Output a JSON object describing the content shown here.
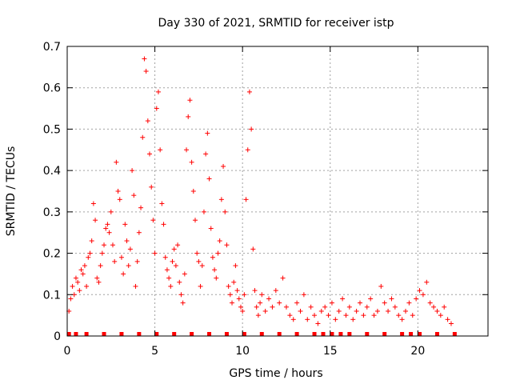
{
  "chart_data": {
    "type": "scatter",
    "title": "Day 330 of 2021, SRMTID for receiver istp",
    "xlabel": "GPS time / hours",
    "ylabel": "SRMTID / TECUs",
    "xlim": [
      0,
      24
    ],
    "ylim": [
      0,
      0.7
    ],
    "xticks": [
      0,
      5,
      10,
      15,
      20
    ],
    "yticks": [
      0,
      0.1,
      0.2,
      0.3,
      0.4,
      0.5,
      0.6,
      0.7
    ],
    "xtick_labels": [
      "0",
      "5",
      "10",
      "15",
      "20"
    ],
    "ytick_labels": [
      "0",
      "0.1",
      "0.2",
      "0.3",
      "0.4",
      "0.5",
      "0.6",
      "0.7"
    ],
    "grid": true,
    "marker": "+",
    "color": "#ff0000",
    "series": [
      {
        "name": "SRMTID",
        "points": [
          [
            0.1,
            0.06
          ],
          [
            0.2,
            0.09
          ],
          [
            0.3,
            0.12
          ],
          [
            0.4,
            0.1
          ],
          [
            0.5,
            0.14
          ],
          [
            0.6,
            0.13
          ],
          [
            0.7,
            0.11
          ],
          [
            0.8,
            0.16
          ],
          [
            0.9,
            0.15
          ],
          [
            1.0,
            0.17
          ],
          [
            1.1,
            0.12
          ],
          [
            1.2,
            0.19
          ],
          [
            1.3,
            0.2
          ],
          [
            1.4,
            0.23
          ],
          [
            1.5,
            0.32
          ],
          [
            1.6,
            0.28
          ],
          [
            1.7,
            0.14
          ],
          [
            1.8,
            0.13
          ],
          [
            1.9,
            0.17
          ],
          [
            2.0,
            0.2
          ],
          [
            2.1,
            0.22
          ],
          [
            2.2,
            0.26
          ],
          [
            2.3,
            0.27
          ],
          [
            2.4,
            0.25
          ],
          [
            2.5,
            0.3
          ],
          [
            2.6,
            0.22
          ],
          [
            2.7,
            0.18
          ],
          [
            2.8,
            0.42
          ],
          [
            2.9,
            0.35
          ],
          [
            3.0,
            0.33
          ],
          [
            3.1,
            0.19
          ],
          [
            3.2,
            0.15
          ],
          [
            3.3,
            0.27
          ],
          [
            3.4,
            0.23
          ],
          [
            3.5,
            0.17
          ],
          [
            3.6,
            0.21
          ],
          [
            3.7,
            0.4
          ],
          [
            3.8,
            0.34
          ],
          [
            3.9,
            0.12
          ],
          [
            4.0,
            0.18
          ],
          [
            4.1,
            0.25
          ],
          [
            4.2,
            0.31
          ],
          [
            4.3,
            0.48
          ],
          [
            4.4,
            0.67
          ],
          [
            4.5,
            0.64
          ],
          [
            4.6,
            0.52
          ],
          [
            4.7,
            0.44
          ],
          [
            4.8,
            0.36
          ],
          [
            4.9,
            0.28
          ],
          [
            5.0,
            0.2
          ],
          [
            5.1,
            0.55
          ],
          [
            5.2,
            0.59
          ],
          [
            5.3,
            0.45
          ],
          [
            5.4,
            0.32
          ],
          [
            5.5,
            0.27
          ],
          [
            5.6,
            0.19
          ],
          [
            5.7,
            0.16
          ],
          [
            5.8,
            0.14
          ],
          [
            5.9,
            0.12
          ],
          [
            6.0,
            0.18
          ],
          [
            6.1,
            0.21
          ],
          [
            6.2,
            0.17
          ],
          [
            6.3,
            0.22
          ],
          [
            6.4,
            0.13
          ],
          [
            6.5,
            0.1
          ],
          [
            6.6,
            0.08
          ],
          [
            6.7,
            0.15
          ],
          [
            6.8,
            0.45
          ],
          [
            6.9,
            0.53
          ],
          [
            7.0,
            0.57
          ],
          [
            7.1,
            0.42
          ],
          [
            7.2,
            0.35
          ],
          [
            7.3,
            0.28
          ],
          [
            7.4,
            0.2
          ],
          [
            7.5,
            0.18
          ],
          [
            7.6,
            0.12
          ],
          [
            7.7,
            0.17
          ],
          [
            7.8,
            0.3
          ],
          [
            7.9,
            0.44
          ],
          [
            8.0,
            0.49
          ],
          [
            8.1,
            0.38
          ],
          [
            8.2,
            0.26
          ],
          [
            8.3,
            0.19
          ],
          [
            8.4,
            0.16
          ],
          [
            8.5,
            0.14
          ],
          [
            8.6,
            0.2
          ],
          [
            8.7,
            0.23
          ],
          [
            8.8,
            0.33
          ],
          [
            8.9,
            0.41
          ],
          [
            9.0,
            0.3
          ],
          [
            9.1,
            0.22
          ],
          [
            9.2,
            0.12
          ],
          [
            9.3,
            0.1
          ],
          [
            9.4,
            0.08
          ],
          [
            9.5,
            0.13
          ],
          [
            9.6,
            0.17
          ],
          [
            9.7,
            0.11
          ],
          [
            9.8,
            0.09
          ],
          [
            9.9,
            0.07
          ],
          [
            10.0,
            0.06
          ],
          [
            10.1,
            0.1
          ],
          [
            10.2,
            0.33
          ],
          [
            10.3,
            0.45
          ],
          [
            10.4,
            0.59
          ],
          [
            10.5,
            0.5
          ],
          [
            10.6,
            0.21
          ],
          [
            10.7,
            0.11
          ],
          [
            10.8,
            0.07
          ],
          [
            10.9,
            0.05
          ],
          [
            11.0,
            0.08
          ],
          [
            11.1,
            0.1
          ],
          [
            11.3,
            0.06
          ],
          [
            11.5,
            0.09
          ],
          [
            11.7,
            0.07
          ],
          [
            11.9,
            0.11
          ],
          [
            12.1,
            0.08
          ],
          [
            12.3,
            0.14
          ],
          [
            12.5,
            0.07
          ],
          [
            12.7,
            0.05
          ],
          [
            12.9,
            0.04
          ],
          [
            13.1,
            0.08
          ],
          [
            13.3,
            0.06
          ],
          [
            13.5,
            0.1
          ],
          [
            13.7,
            0.04
          ],
          [
            13.9,
            0.07
          ],
          [
            14.1,
            0.05
          ],
          [
            14.3,
            0.03
          ],
          [
            14.5,
            0.06
          ],
          [
            14.7,
            0.07
          ],
          [
            14.9,
            0.05
          ],
          [
            15.1,
            0.08
          ],
          [
            15.3,
            0.04
          ],
          [
            15.5,
            0.06
          ],
          [
            15.7,
            0.09
          ],
          [
            15.9,
            0.05
          ],
          [
            16.1,
            0.07
          ],
          [
            16.3,
            0.04
          ],
          [
            16.5,
            0.06
          ],
          [
            16.7,
            0.08
          ],
          [
            16.9,
            0.05
          ],
          [
            17.1,
            0.07
          ],
          [
            17.3,
            0.09
          ],
          [
            17.5,
            0.05
          ],
          [
            17.7,
            0.06
          ],
          [
            17.9,
            0.12
          ],
          [
            18.1,
            0.08
          ],
          [
            18.3,
            0.06
          ],
          [
            18.5,
            0.09
          ],
          [
            18.7,
            0.07
          ],
          [
            18.9,
            0.05
          ],
          [
            19.1,
            0.04
          ],
          [
            19.3,
            0.06
          ],
          [
            19.5,
            0.08
          ],
          [
            19.7,
            0.05
          ],
          [
            19.9,
            0.09
          ],
          [
            20.1,
            0.11
          ],
          [
            20.3,
            0.1
          ],
          [
            20.5,
            0.13
          ],
          [
            20.7,
            0.08
          ],
          [
            20.9,
            0.07
          ],
          [
            21.1,
            0.06
          ],
          [
            21.3,
            0.05
          ],
          [
            21.5,
            0.07
          ],
          [
            21.7,
            0.04
          ],
          [
            21.9,
            0.03
          ]
        ]
      }
    ],
    "rug_x": [
      0.1,
      0.5,
      1.1,
      2.1,
      3.1,
      4.1,
      5.1,
      6.1,
      7.1,
      8.1,
      9.1,
      10.1,
      11.1,
      12.1,
      13.1,
      14.1,
      14.6,
      15.1,
      15.6,
      16.1,
      17.1,
      18.1,
      19.1,
      19.6,
      20.1,
      21.1,
      22.1
    ]
  }
}
